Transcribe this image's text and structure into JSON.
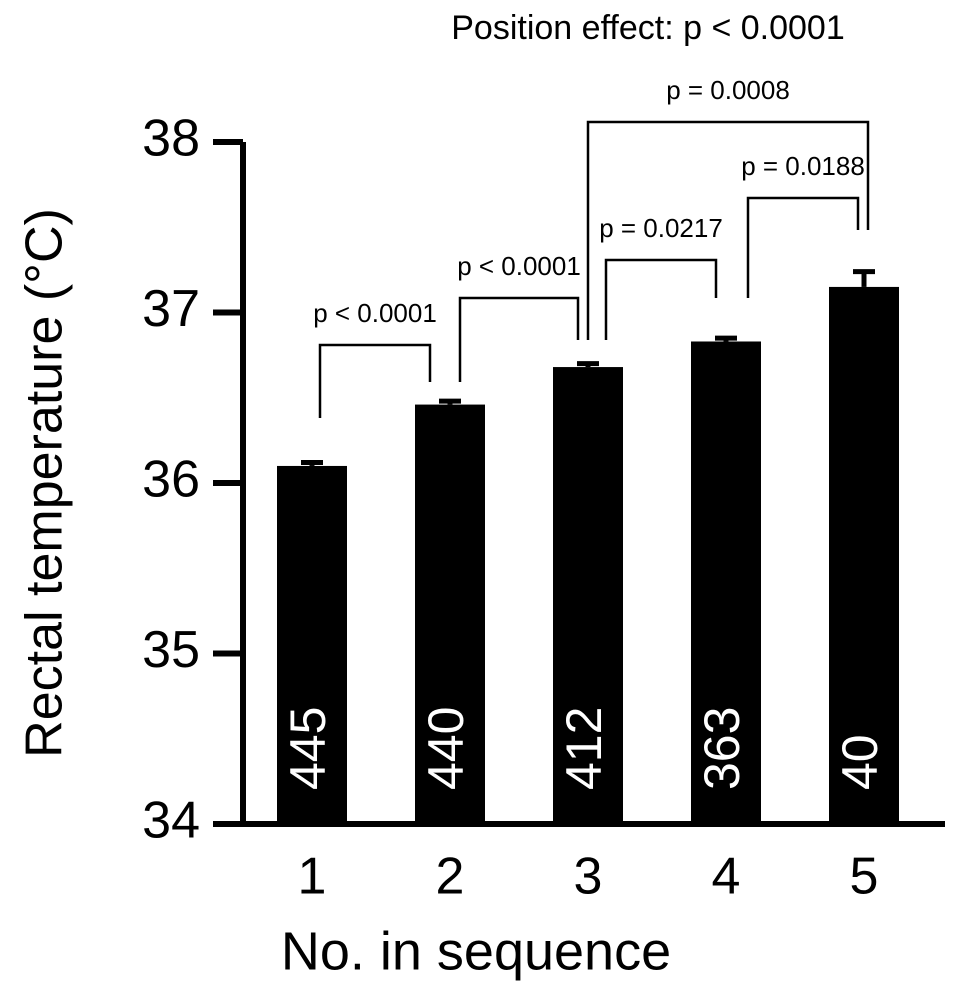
{
  "chart_data": {
    "type": "bar",
    "title": "Position effect: p < 0.0001",
    "x_label": "No. in sequence",
    "y_label": "Rectal temperature (°C)",
    "categories": [
      "1",
      "2",
      "3",
      "4",
      "5"
    ],
    "values": [
      36.1,
      36.46,
      36.68,
      36.83,
      37.15
    ],
    "errors": [
      0.02,
      0.02,
      0.02,
      0.02,
      0.09
    ],
    "counts": [
      445,
      440,
      412,
      363,
      40
    ],
    "color": "#000000",
    "ylim": [
      34,
      38
    ],
    "yticks": [
      34,
      35,
      36,
      37,
      38
    ],
    "comparisons": [
      {
        "between": [
          0,
          1
        ],
        "label": "p < 0.0001"
      },
      {
        "between": [
          1,
          2
        ],
        "label": "p < 0.0001"
      },
      {
        "between": [
          2,
          3
        ],
        "label": "p = 0.0217"
      },
      {
        "between": [
          3,
          4
        ],
        "label": "p = 0.0188"
      },
      {
        "between": [
          2,
          4
        ],
        "label": "p = 0.0008"
      }
    ]
  }
}
